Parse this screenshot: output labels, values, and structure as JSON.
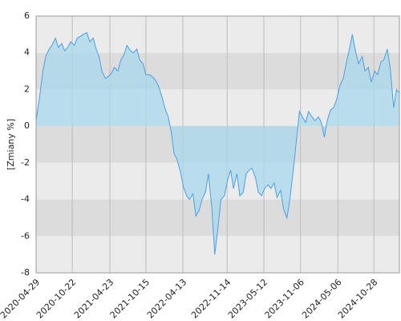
{
  "chart_data": {
    "type": "area",
    "y_label": "[Zmiany %]",
    "x": [
      "2020-04-29",
      "2020-05-15",
      "2020-06-01",
      "2020-06-15",
      "2020-07-01",
      "2020-07-15",
      "2020-08-01",
      "2020-08-15",
      "2020-09-01",
      "2020-09-15",
      "2020-10-01",
      "2020-10-15",
      "2020-11-01",
      "2020-11-15",
      "2020-12-01",
      "2020-12-15",
      "2021-01-01",
      "2021-01-15",
      "2021-02-01",
      "2021-02-15",
      "2021-03-01",
      "2021-03-15",
      "2021-04-01",
      "2021-04-15",
      "2021-05-01",
      "2021-05-15",
      "2021-06-01",
      "2021-06-15",
      "2021-07-01",
      "2021-07-15",
      "2021-08-01",
      "2021-08-15",
      "2021-09-01",
      "2021-09-15",
      "2021-10-01",
      "2021-10-15",
      "2021-11-01",
      "2021-11-15",
      "2021-12-01",
      "2021-12-15",
      "2022-01-01",
      "2022-01-15",
      "2022-02-01",
      "2022-02-15",
      "2022-03-01",
      "2022-03-15",
      "2022-04-01",
      "2022-04-15",
      "2022-05-01",
      "2022-05-15",
      "2022-06-01",
      "2022-06-15",
      "2022-07-01",
      "2022-07-15",
      "2022-08-01",
      "2022-08-15",
      "2022-09-01",
      "2022-09-15",
      "2022-10-01",
      "2022-10-15",
      "2022-11-01",
      "2022-11-15",
      "2022-12-01",
      "2022-12-15",
      "2023-01-01",
      "2023-01-15",
      "2023-02-01",
      "2023-02-15",
      "2023-03-01",
      "2023-03-15",
      "2023-04-01",
      "2023-04-15",
      "2023-05-01",
      "2023-05-15",
      "2023-06-01",
      "2023-06-15",
      "2023-07-01",
      "2023-07-15",
      "2023-08-01",
      "2023-08-15",
      "2023-09-01",
      "2023-09-15",
      "2023-10-01",
      "2023-10-15",
      "2023-11-01",
      "2023-11-15",
      "2023-12-01",
      "2023-12-15",
      "2024-01-01",
      "2024-01-15",
      "2024-02-01",
      "2024-02-15",
      "2024-03-01",
      "2024-03-15",
      "2024-04-01",
      "2024-04-15",
      "2024-05-01",
      "2024-05-15",
      "2024-06-01",
      "2024-06-15",
      "2024-07-01",
      "2024-07-15",
      "2024-08-01",
      "2024-08-15",
      "2024-09-01",
      "2024-09-15",
      "2024-10-01",
      "2024-10-15",
      "2024-11-01",
      "2024-11-15",
      "2024-12-01",
      "2024-12-15",
      "2025-01-01",
      "2025-01-15",
      "2025-02-01",
      "2025-02-15",
      "2025-03-01"
    ],
    "values": [
      0.3,
      1.5,
      3.0,
      3.8,
      4.2,
      4.4,
      4.8,
      4.3,
      4.5,
      4.1,
      4.3,
      4.6,
      4.4,
      4.8,
      4.9,
      5.0,
      5.1,
      4.6,
      4.8,
      4.2,
      3.8,
      3.0,
      2.6,
      2.7,
      2.9,
      3.2,
      3.0,
      3.6,
      3.9,
      4.4,
      4.1,
      4.0,
      4.2,
      3.6,
      3.4,
      2.8,
      2.8,
      2.7,
      2.5,
      2.2,
      1.6,
      1.0,
      0.5,
      -0.3,
      -1.5,
      -1.8,
      -2.5,
      -3.3,
      -3.8,
      -4.0,
      -3.7,
      -4.9,
      -4.6,
      -4.0,
      -3.6,
      -2.6,
      -4.5,
      -7.0,
      -5.5,
      -4.0,
      -3.8,
      -3.0,
      -2.4,
      -3.4,
      -2.6,
      -3.8,
      -3.6,
      -2.6,
      -2.4,
      -2.3,
      -2.8,
      -3.6,
      -3.8,
      -3.4,
      -3.2,
      -3.4,
      -3.1,
      -3.9,
      -3.5,
      -4.5,
      -5.0,
      -4.0,
      -2.5,
      -1.0,
      0.8,
      0.5,
      0.2,
      0.8,
      0.5,
      0.3,
      0.5,
      0.2,
      -0.6,
      0.3,
      0.9,
      1.0,
      1.5,
      2.2,
      2.6,
      3.4,
      4.2,
      5.0,
      4.0,
      3.4,
      3.8,
      3.0,
      3.2,
      2.4,
      3.0,
      2.8,
      3.5,
      3.6,
      4.2,
      3.2,
      1.0,
      2.0,
      1.8
    ],
    "color": "#4a9fe8",
    "fill_color": "#a8d8ea",
    "xlim": [
      "2020-04-29",
      "2025-03-01"
    ],
    "xticks": [
      "2020-04-29",
      "2020-10-22",
      "2021-04-23",
      "2021-10-15",
      "2022-04-13",
      "2022-11-14",
      "2023-05-12",
      "2023-11-06",
      "2024-05-06",
      "2024-10-28"
    ],
    "ylim": [
      -8,
      6
    ],
    "yticks": [
      -8,
      -6,
      -4,
      -2,
      0,
      2,
      4,
      6
    ],
    "grid": true
  }
}
